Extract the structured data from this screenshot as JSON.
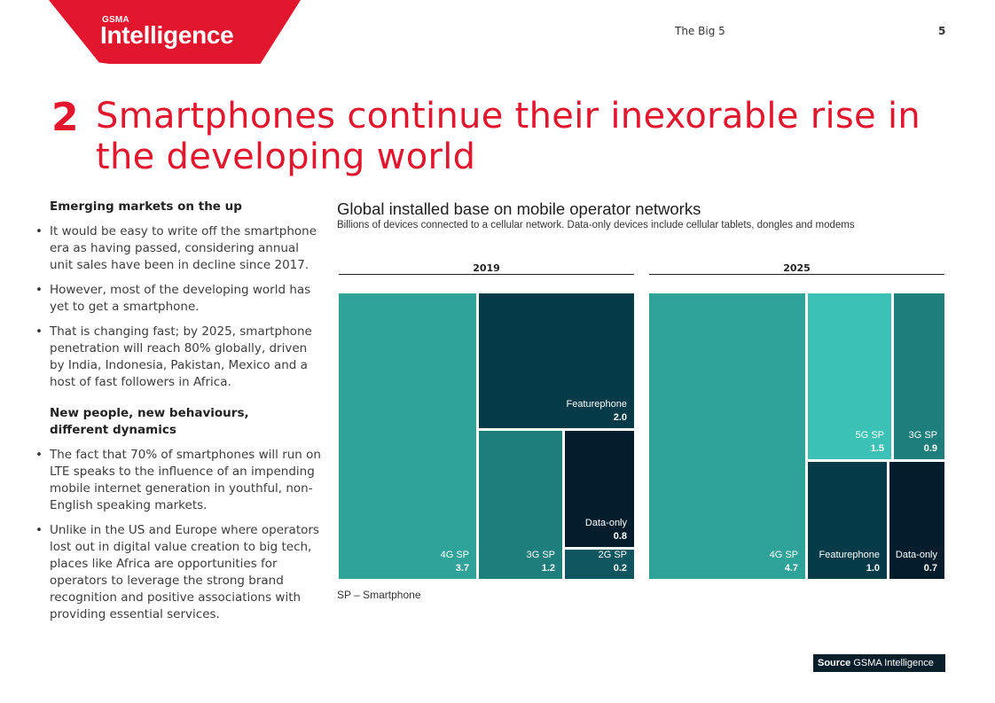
{
  "header": {
    "logo_small": "GSMA",
    "logo_big": "Intelligence",
    "running_title": "The Big 5",
    "page_number": "5"
  },
  "section": {
    "number": "2",
    "title": "Smartphones continue their inexorable rise in the developing world"
  },
  "left_column": {
    "heading1": "Emerging markets on the up",
    "bullets1": [
      "It would be easy to write off the smartphone era as having passed, considering annual unit sales have been in decline since 2017.",
      "However, most of the developing world has yet to get a smartphone.",
      "That is changing fast; by 2025, smartphone penetration will reach 80% globally, driven by India, Indonesia, Pakistan, Mexico and a host of fast followers in Africa."
    ],
    "heading2": "New people, new behaviours, different dynamics",
    "bullets2": [
      "The fact that 70% of smartphones will run on LTE speaks to the influence of an impending mobile internet generation in youthful, non-English speaking markets.",
      "Unlike in the US and Europe where operators lost out in digital value creation to big tech, places like Africa are opportunities for operators to leverage the strong brand recognition and positive associations with providing essential services."
    ]
  },
  "colors": {
    "brand_red": "#e2162d",
    "teal_4g": "#2fa39a",
    "teal_5g": "#3cc1b6",
    "teal_3g": "#1d7e7b",
    "dark_feature": "#053a48",
    "dark_data": "#041d2c",
    "teal_2g": "#0f5660"
  },
  "chart_data": {
    "type": "treemap",
    "title": "Global installed base on mobile operator networks",
    "subtitle": "Billions of devices connected to a cellular network. Data-only devices include cellular tablets, dongles and modems",
    "unit": "billion devices",
    "panels": [
      {
        "year": "2019",
        "items": [
          {
            "name": "4G SP",
            "value": 3.7,
            "value_label": "3.7",
            "color": "#2fa39a"
          },
          {
            "name": "Featurephone",
            "value": 2.0,
            "value_label": "2.0",
            "color": "#053a48"
          },
          {
            "name": "3G SP",
            "value": 1.2,
            "value_label": "1.2",
            "color": "#1d7e7b"
          },
          {
            "name": "Data-only",
            "value": 0.8,
            "value_label": "0.8",
            "color": "#041d2c"
          },
          {
            "name": "2G SP",
            "value": 0.2,
            "value_label": "0.2",
            "color": "#0f5660"
          }
        ]
      },
      {
        "year": "2025",
        "items": [
          {
            "name": "4G SP",
            "value": 4.7,
            "value_label": "4.7",
            "color": "#2fa39a"
          },
          {
            "name": "5G SP",
            "value": 1.5,
            "value_label": "1.5",
            "color": "#3cc1b6"
          },
          {
            "name": "3G SP",
            "value": 0.9,
            "value_label": "0.9",
            "color": "#1d7e7b"
          },
          {
            "name": "Featurephone",
            "value": 1.0,
            "value_label": "1.0",
            "color": "#053a48"
          },
          {
            "name": "Data-only",
            "value": 0.7,
            "value_label": "0.7",
            "color": "#041d2c"
          }
        ]
      }
    ],
    "footnote": "SP – Smartphone"
  },
  "source": {
    "label": "Source",
    "text": "GSMA Intelligence"
  }
}
